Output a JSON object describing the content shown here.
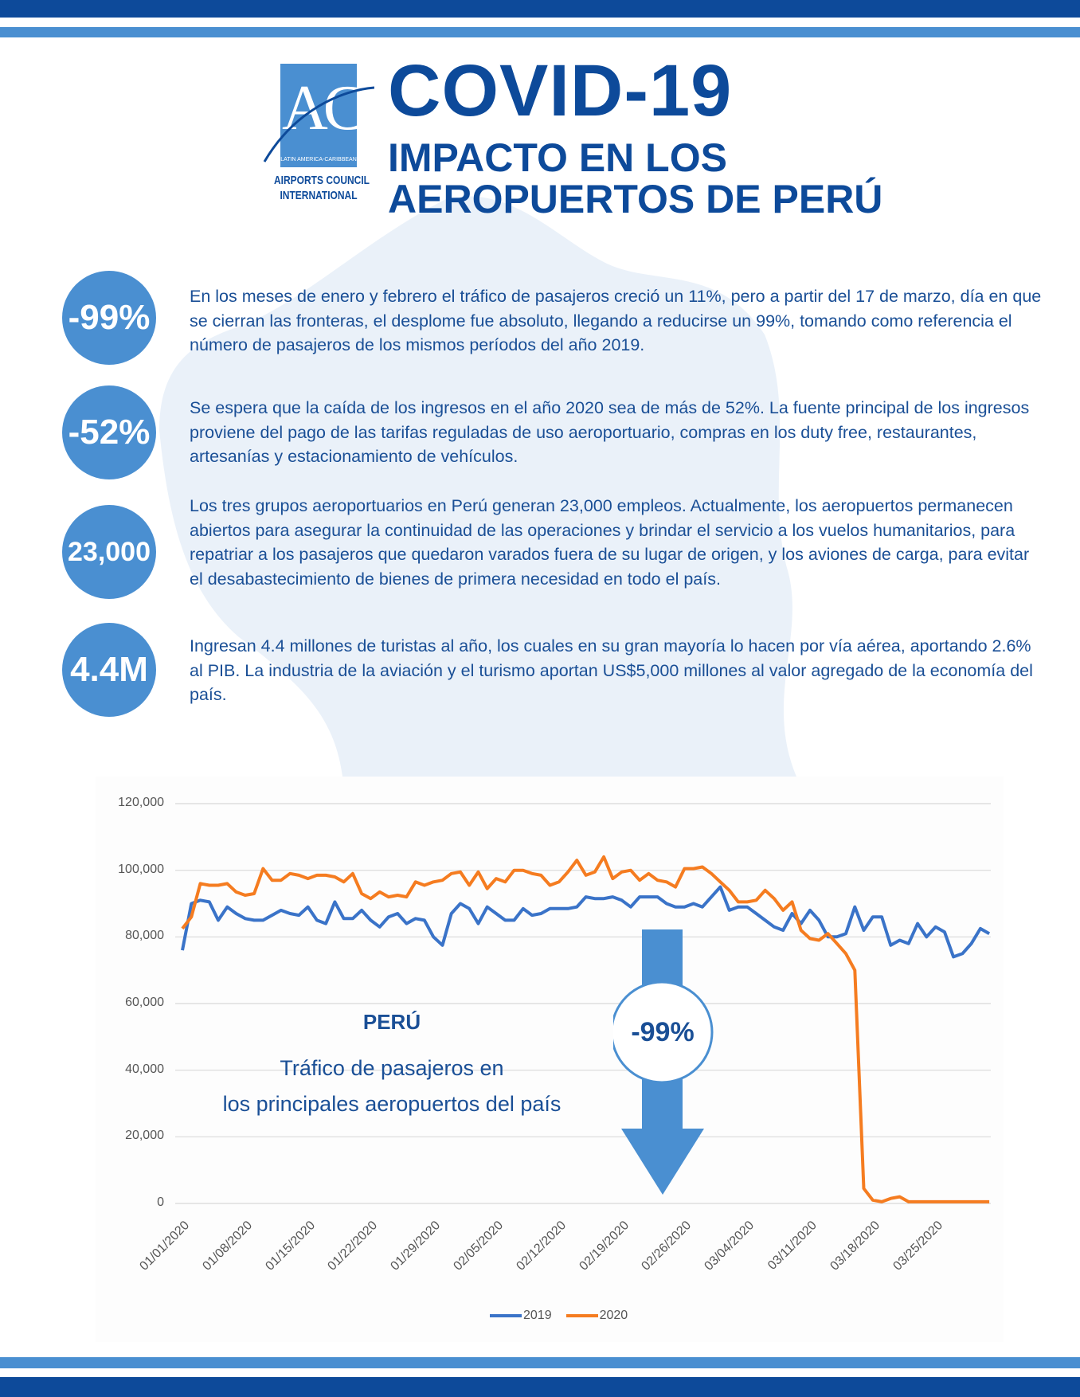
{
  "colors": {
    "brand": "#0d4a9a",
    "accent": "#4a8fd1",
    "series_2019": "#3a73c8",
    "series_2020": "#f57c20"
  },
  "logo": {
    "letters": "ACI",
    "region": "LATIN AMERICA-CARIBBEAN",
    "name_line1": "AIRPORTS COUNCIL",
    "name_line2": "INTERNATIONAL"
  },
  "header": {
    "title": "COVID-19",
    "subtitle_line1": "IMPACTO EN LOS",
    "subtitle_line2": "AEROPUERTOS DE PERÚ"
  },
  "stats": [
    {
      "value": "-99%",
      "text": "En los meses de enero y febrero el tráfico de pasajeros creció un 11%, pero a partir del 17 de marzo, día en que se cierran las fronteras, el desplome fue absoluto, llegando a reducirse un 99%, tomando como referencia el número de pasajeros de los mismos períodos del año 2019."
    },
    {
      "value": "-52%",
      "text": "Se espera que la caída de los ingresos en el año 2020 sea de más de 52%. La fuente principal de los ingresos proviene del pago de las tarifas reguladas de uso aeroportuario, compras en los duty free, restaurantes, artesanías y estacionamiento de vehículos."
    },
    {
      "value": "23,000",
      "text": "Los tres grupos aeroportuarios en Perú generan 23,000 empleos. Actualmente, los aeropuertos permanecen abiertos para asegurar la continuidad de las operaciones y brindar el servicio a los vuelos humanitarios, para repatriar a los pasajeros que quedaron varados fuera de su lugar de origen, y los aviones de carga, para evitar el desabastecimiento de bienes de primera necesidad en todo el país."
    },
    {
      "value": "4.4M",
      "text": "Ingresan 4.4 millones de turistas al año, los cuales en su gran mayoría lo hacen por vía aérea, aportando 2.6% al PIB. La industria de la aviación y el turismo aportan US$5,000 millones al valor agregado de la economía del país."
    }
  ],
  "chart_data": {
    "type": "line",
    "title": "PERÚ",
    "subtitle_line1": "Tráfico de pasajeros en",
    "subtitle_line2": "los principales aeropuertos del país",
    "annotation": "-99%",
    "x_start": "01/01/2020",
    "x_end": "03/31/2020",
    "xtick_labels": [
      "01/01/2020",
      "01/08/2020",
      "01/15/2020",
      "01/22/2020",
      "01/29/2020",
      "02/05/2020",
      "02/12/2020",
      "02/19/2020",
      "02/26/2020",
      "03/04/2020",
      "03/11/2020",
      "03/18/2020",
      "03/25/2020"
    ],
    "ytick_labels": [
      "0",
      "20,000",
      "40,000",
      "60,000",
      "80,000",
      "100,000",
      "120,000"
    ],
    "ylim": [
      0,
      120000
    ],
    "grid": true,
    "legend": "bottom",
    "series": [
      {
        "name": "2019",
        "values": [
          76000,
          90000,
          91000,
          90500,
          85000,
          89000,
          87000,
          85500,
          85000,
          85000,
          86500,
          88000,
          87000,
          86500,
          89000,
          85000,
          84000,
          90500,
          85500,
          85500,
          88000,
          85000,
          83000,
          86000,
          87000,
          84000,
          85500,
          85000,
          80000,
          77500,
          87000,
          90000,
          88500,
          84000,
          89000,
          87000,
          85000,
          85000,
          88500,
          86500,
          87000,
          88500,
          88500,
          88500,
          89000,
          92000,
          91500,
          91500,
          92000,
          91000,
          89000,
          92000,
          92000,
          92000,
          90000,
          89000,
          89000,
          90000,
          89000,
          92000,
          95000,
          88000,
          89000,
          89000,
          87000,
          85000,
          83000,
          82000,
          87000,
          84000,
          88000,
          85000,
          80000,
          80000,
          81000,
          89000,
          82000,
          86000,
          86000,
          77500,
          79000,
          78000,
          84000,
          80000,
          83000,
          81500,
          74000,
          75000,
          78000,
          82500,
          81000
        ]
      },
      {
        "name": "2020",
        "values": [
          82500,
          86000,
          96000,
          95500,
          95500,
          96000,
          93500,
          92500,
          93000,
          100500,
          97000,
          97000,
          99000,
          98500,
          97500,
          98500,
          98500,
          98000,
          96500,
          99000,
          93000,
          91500,
          93500,
          92000,
          92500,
          92000,
          96500,
          95500,
          96500,
          97000,
          99000,
          99500,
          95500,
          99500,
          94500,
          97500,
          96500,
          100000,
          100000,
          99000,
          98500,
          95500,
          96500,
          99500,
          103000,
          98500,
          99500,
          104000,
          97500,
          99500,
          100000,
          97000,
          99000,
          97000,
          96500,
          95000,
          100500,
          100500,
          101000,
          99000,
          96500,
          94000,
          90500,
          90500,
          91000,
          94000,
          91500,
          88000,
          90500,
          82000,
          79500,
          79000,
          81000,
          78000,
          75000,
          70000,
          4500,
          1000,
          500,
          1500,
          2000,
          500,
          500,
          500,
          500,
          500,
          500,
          500,
          500,
          500,
          500
        ]
      }
    ]
  }
}
